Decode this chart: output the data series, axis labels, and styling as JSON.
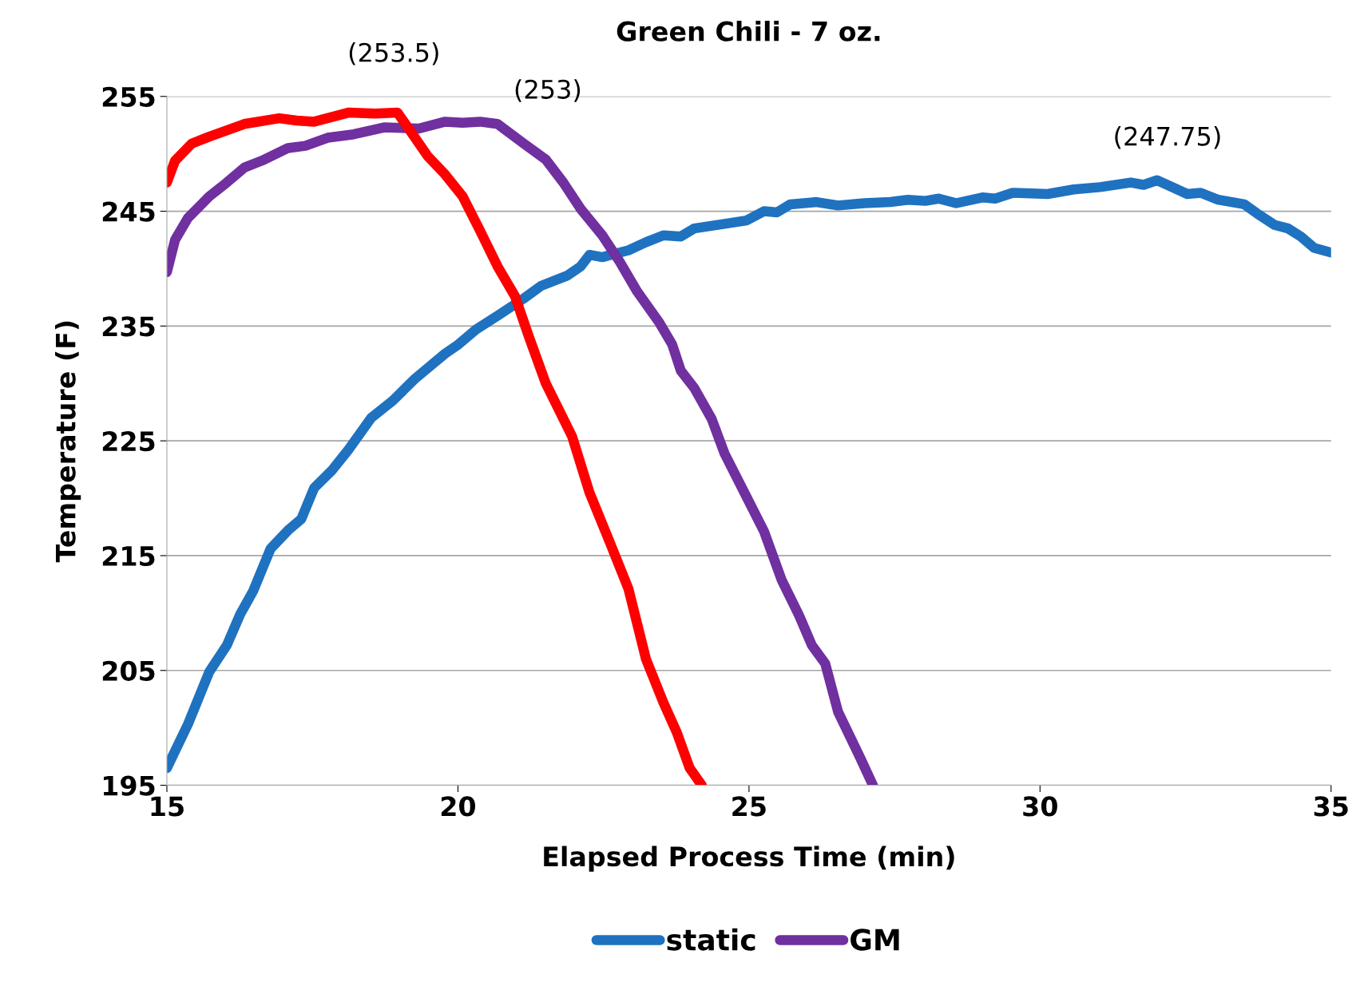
{
  "chart_data": {
    "type": "line",
    "title": "Green Chili - 7 oz.",
    "xlabel": "Elapsed Process Time (min)",
    "ylabel": "Temperature (F)",
    "xlim": [
      15,
      35
    ],
    "xticks": [
      15,
      20,
      25,
      30,
      35
    ],
    "ylim": [
      195,
      255
    ],
    "yticks": [
      195,
      205,
      215,
      225,
      235,
      245,
      255
    ],
    "grid": "y",
    "legend": "bottom",
    "marker": "none",
    "line_style": "solid",
    "series": [
      {
        "name": "static",
        "color": "#1f72c0",
        "x": [
          15.0,
          15.36,
          15.73,
          16.03,
          16.26,
          16.48,
          16.78,
          17.08,
          17.31,
          17.53,
          17.83,
          18.13,
          18.51,
          18.88,
          19.26,
          19.78,
          20.01,
          20.31,
          20.68,
          21.13,
          21.43,
          21.88,
          22.11,
          22.26,
          22.48,
          22.93,
          23.23,
          23.53,
          23.83,
          24.06,
          24.58,
          24.96,
          25.26,
          25.48,
          25.71,
          26.16,
          26.53,
          26.98,
          27.43,
          27.73,
          28.03,
          28.26,
          28.56,
          29.01,
          29.23,
          29.53,
          30.13,
          30.58,
          31.03,
          31.56,
          31.78,
          32.01,
          32.23,
          32.53,
          32.76,
          33.06,
          33.51,
          33.73,
          34.03,
          34.26,
          34.48,
          34.71,
          35.0
        ],
        "values": [
          196.5,
          200.3,
          204.9,
          207.2,
          209.9,
          211.9,
          215.6,
          217.2,
          218.2,
          220.9,
          222.4,
          224.3,
          227.0,
          228.5,
          230.4,
          232.6,
          233.4,
          234.7,
          235.9,
          237.4,
          238.5,
          239.4,
          240.2,
          241.2,
          241.0,
          241.6,
          242.3,
          242.9,
          242.8,
          243.5,
          243.9,
          244.2,
          245.0,
          244.9,
          245.6,
          245.8,
          245.5,
          245.7,
          245.8,
          246.0,
          245.9,
          246.1,
          245.7,
          246.2,
          246.1,
          246.6,
          246.5,
          246.9,
          247.1,
          247.5,
          247.3,
          247.7,
          247.2,
          246.5,
          246.6,
          246.0,
          245.6,
          244.8,
          243.8,
          243.5,
          242.8,
          241.8,
          241.4
        ]
      },
      {
        "name": "GM",
        "color": "#7030a0",
        "x": [
          15.0,
          15.14,
          15.36,
          15.73,
          16.03,
          16.33,
          16.63,
          17.08,
          17.38,
          17.76,
          18.21,
          18.73,
          19.33,
          19.78,
          20.08,
          20.38,
          20.68,
          21.13,
          21.51,
          21.81,
          22.11,
          22.48,
          22.78,
          23.08,
          23.46,
          23.68,
          23.83,
          24.06,
          24.36,
          24.58,
          24.96,
          25.26,
          25.56,
          25.86,
          26.08,
          26.31,
          26.53,
          26.91,
          27.13
        ],
        "values": [
          239.7,
          242.5,
          244.4,
          246.3,
          247.5,
          248.8,
          249.4,
          250.5,
          250.7,
          251.4,
          251.7,
          252.3,
          252.2,
          252.8,
          252.7,
          252.8,
          252.6,
          250.9,
          249.5,
          247.5,
          245.2,
          242.9,
          240.6,
          238.0,
          235.3,
          233.4,
          231.1,
          229.6,
          226.9,
          223.9,
          220.1,
          217.1,
          212.9,
          209.8,
          207.2,
          205.6,
          201.4,
          197.4,
          195.0
        ]
      },
      {
        "color": "#ff0000",
        "x": [
          15.0,
          15.14,
          15.43,
          15.73,
          16.33,
          16.93,
          17.23,
          17.53,
          17.83,
          18.13,
          18.58,
          18.96,
          19.18,
          19.48,
          19.78,
          20.08,
          20.38,
          20.68,
          20.98,
          21.21,
          21.51,
          21.96,
          22.26,
          22.63,
          22.93,
          23.23,
          23.53,
          23.76,
          23.98,
          24.19
        ],
        "values": [
          247.5,
          249.4,
          250.9,
          251.5,
          252.6,
          253.1,
          252.9,
          252.8,
          253.2,
          253.6,
          253.5,
          253.6,
          252.0,
          249.8,
          248.2,
          246.3,
          243.3,
          240.2,
          237.6,
          234.2,
          230.0,
          225.4,
          220.5,
          215.9,
          212.1,
          206.0,
          202.2,
          199.6,
          196.5,
          195.0
        ]
      }
    ],
    "annotations": [
      {
        "text": "(253.5)",
        "x": 18.9,
        "y": 253.5
      },
      {
        "text": "(253)",
        "x": 20.4,
        "y": 253
      },
      {
        "text": "(247.75)",
        "x": 32.0,
        "y": 247.75
      }
    ]
  }
}
